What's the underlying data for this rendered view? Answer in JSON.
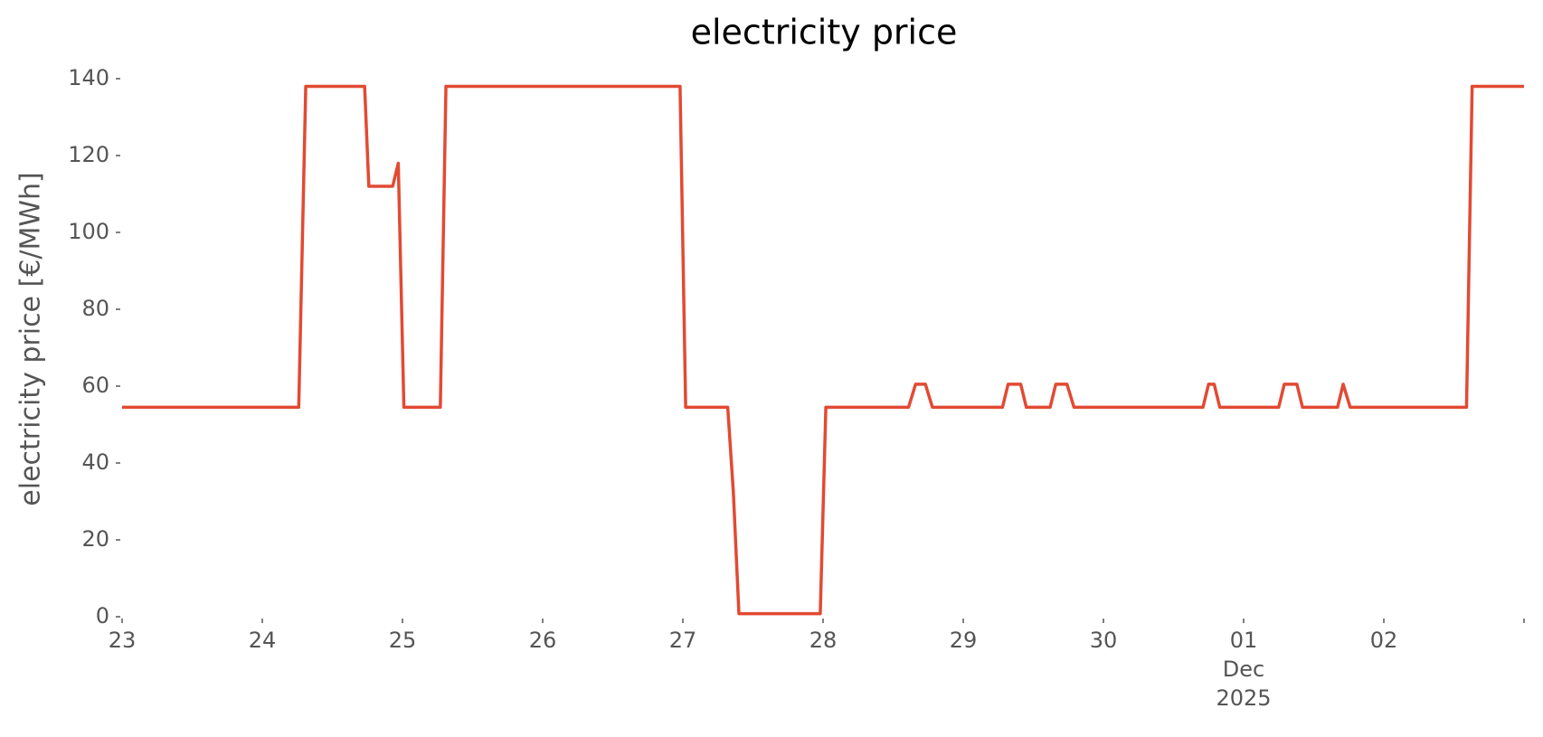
{
  "chart_data": {
    "type": "line",
    "title": "electricity price",
    "y_label": "electricity price [€/MWh]",
    "x": [
      0,
      1.26,
      1.31,
      1.73,
      1.76,
      1.93,
      1.97,
      2.01,
      2.27,
      2.31,
      3.98,
      4.02,
      4.32,
      4.36,
      4.4,
      4.98,
      5.02,
      5.61,
      5.66,
      5.73,
      5.78,
      6.28,
      6.32,
      6.41,
      6.45,
      6.62,
      6.66,
      6.74,
      6.79,
      7.71,
      7.75,
      7.79,
      7.83,
      8.25,
      8.29,
      8.38,
      8.42,
      8.67,
      8.71,
      8.76,
      9.59,
      9.63,
      10
    ],
    "series": [
      {
        "name": "electricity price",
        "color": "#e24a33",
        "values": [
          54.5,
          54.5,
          138,
          138,
          112,
          112,
          118,
          54.5,
          54.5,
          138,
          138,
          54.5,
          54.5,
          32.5,
          0.8,
          0.8,
          54.5,
          54.5,
          60.5,
          60.5,
          54.5,
          54.5,
          60.5,
          60.5,
          54.5,
          54.5,
          60.5,
          60.5,
          54.5,
          54.5,
          60.5,
          60.5,
          54.5,
          54.5,
          60.5,
          60.5,
          54.5,
          54.5,
          60.5,
          54.5,
          54.5,
          138,
          138
        ]
      }
    ],
    "xlim": [
      0,
      10
    ],
    "xticks": [
      {
        "value": 0,
        "label": "23"
      },
      {
        "value": 1,
        "label": "24"
      },
      {
        "value": 2,
        "label": "25"
      },
      {
        "value": 3,
        "label": "26"
      },
      {
        "value": 4,
        "label": "27"
      },
      {
        "value": 5,
        "label": "28"
      },
      {
        "value": 6,
        "label": "29"
      },
      {
        "value": 7,
        "label": "30"
      },
      {
        "value": 8,
        "label": "01\nDec\n2025"
      },
      {
        "value": 9,
        "label": "02"
      },
      {
        "value": 10,
        "label": null
      }
    ],
    "ylim": [
      0,
      140
    ],
    "yticks": [
      0,
      20,
      40,
      60,
      80,
      100,
      120,
      140
    ],
    "grid": false
  }
}
